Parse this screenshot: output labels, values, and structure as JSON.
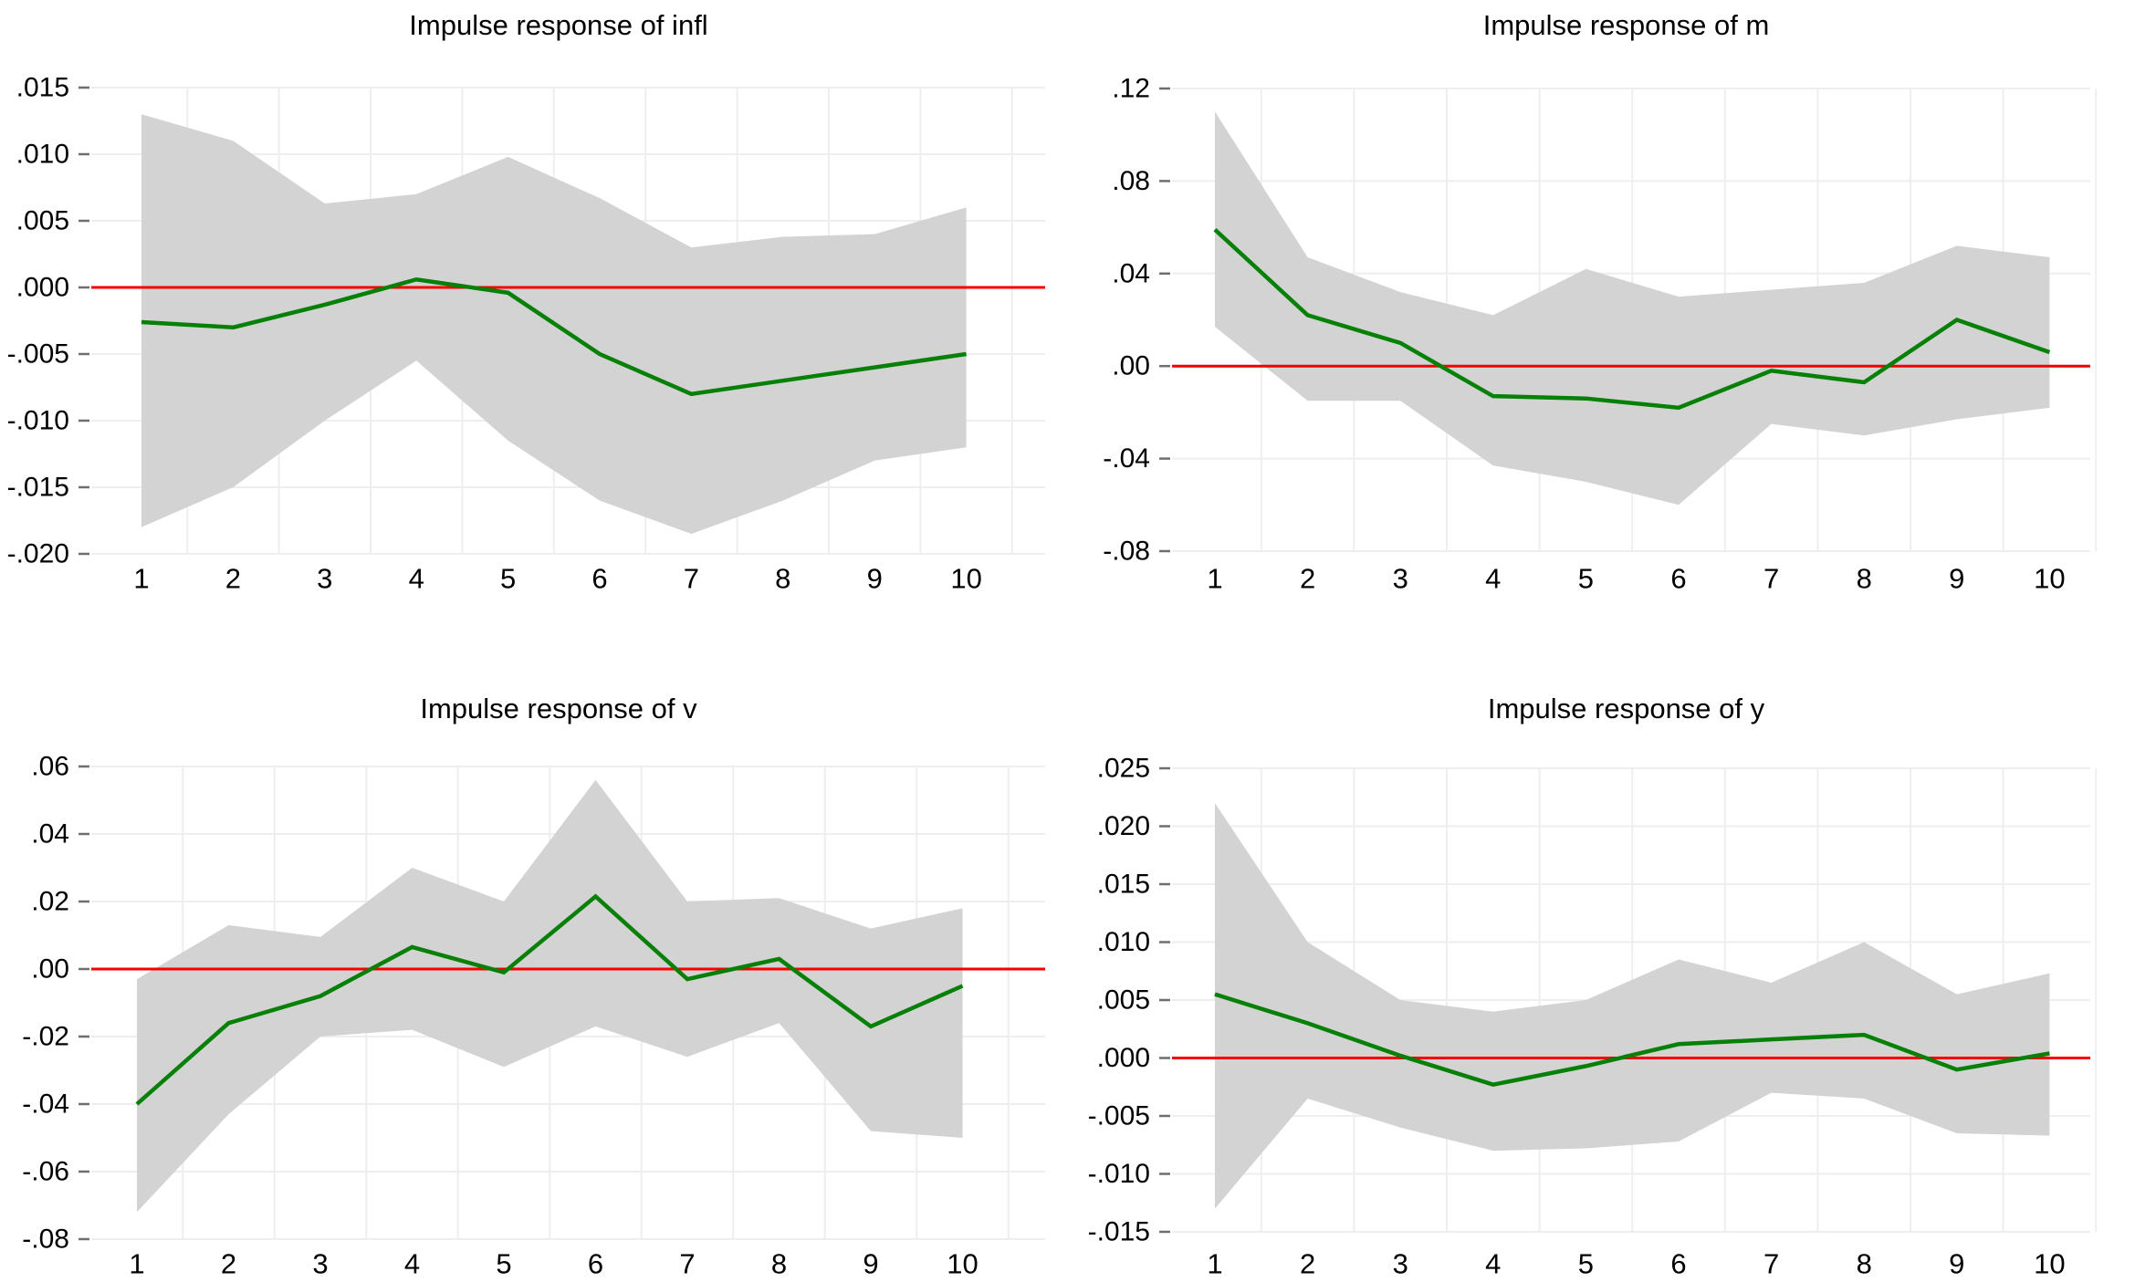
{
  "page": {
    "background": "#ffffff",
    "description_colors": {
      "band_fill": "#d3d3d3",
      "line_green": "#068006",
      "zero_line_red": "#f40000",
      "gridline": "#eeeeee",
      "tick_mark": "#6e6e6e",
      "text": "#000000"
    }
  },
  "chart_data": [
    {
      "type": "line",
      "title": "Impulse response of infl",
      "x": [
        1,
        2,
        3,
        4,
        5,
        6,
        7,
        8,
        9,
        10
      ],
      "xtick_labels": [
        "1",
        "2",
        "3",
        "4",
        "5",
        "6",
        "7",
        "8",
        "9",
        "10"
      ],
      "yticks": [
        {
          "label": ".015",
          "value": 0.015
        },
        {
          "label": ".010",
          "value": 0.01
        },
        {
          "label": ".005",
          "value": 0.005
        },
        {
          "label": ".000",
          "value": 0.0
        },
        {
          "label": "-.005",
          "value": -0.005
        },
        {
          "label": "-.010",
          "value": -0.01
        },
        {
          "label": "-.015",
          "value": -0.015
        },
        {
          "label": "-.020",
          "value": -0.02
        }
      ],
      "ylim": [
        -0.02,
        0.015
      ],
      "grid": "on",
      "legend": "none",
      "zero_line": {
        "value": 0,
        "color": "#f40000"
      },
      "band": {
        "name": "confidence-band",
        "color": "#d3d3d3",
        "upper": [
          0.013,
          0.011,
          0.0063,
          0.007,
          0.0098,
          0.0067,
          0.003,
          0.0038,
          0.004,
          0.006
        ],
        "lower": [
          -0.018,
          -0.015,
          -0.01,
          -0.0055,
          -0.0115,
          -0.016,
          -0.0185,
          -0.016,
          -0.013,
          -0.012
        ]
      },
      "series": [
        {
          "name": "impulse-response",
          "color": "#068006",
          "values": [
            -0.0026,
            -0.003,
            -0.0013,
            0.0006,
            -0.0004,
            -0.005,
            -0.008,
            -0.007,
            -0.006,
            -0.005
          ]
        }
      ]
    },
    {
      "type": "line",
      "title": "Impulse response of m",
      "x": [
        1,
        2,
        3,
        4,
        5,
        6,
        7,
        8,
        9,
        10
      ],
      "xtick_labels": [
        "1",
        "2",
        "3",
        "4",
        "5",
        "6",
        "7",
        "8",
        "9",
        "10"
      ],
      "yticks": [
        {
          "label": ".12",
          "value": 0.12
        },
        {
          "label": ".08",
          "value": 0.08
        },
        {
          "label": ".04",
          "value": 0.04
        },
        {
          "label": ".00",
          "value": 0.0
        },
        {
          "label": "-.04",
          "value": -0.04
        },
        {
          "label": "-.08",
          "value": -0.08
        }
      ],
      "ylim": [
        -0.08,
        0.12
      ],
      "grid": "on",
      "legend": "none",
      "zero_line": {
        "value": 0,
        "color": "#f40000"
      },
      "band": {
        "name": "confidence-band",
        "color": "#d3d3d3",
        "upper": [
          0.11,
          0.047,
          0.032,
          0.022,
          0.042,
          0.03,
          0.033,
          0.036,
          0.052,
          0.047
        ],
        "lower": [
          0.017,
          -0.015,
          -0.015,
          -0.043,
          -0.05,
          -0.06,
          -0.025,
          -0.03,
          -0.023,
          -0.018
        ]
      },
      "series": [
        {
          "name": "impulse-response",
          "color": "#068006",
          "values": [
            0.059,
            0.022,
            0.01,
            -0.013,
            -0.014,
            -0.018,
            -0.002,
            -0.007,
            0.02,
            0.006
          ]
        }
      ]
    },
    {
      "type": "line",
      "title": "Impulse response of v",
      "x": [
        1,
        2,
        3,
        4,
        5,
        6,
        7,
        8,
        9,
        10
      ],
      "xtick_labels": [
        "1",
        "2",
        "3",
        "4",
        "5",
        "6",
        "7",
        "8",
        "9",
        "10"
      ],
      "yticks": [
        {
          "label": ".06",
          "value": 0.06
        },
        {
          "label": ".04",
          "value": 0.04
        },
        {
          "label": ".02",
          "value": 0.02
        },
        {
          "label": ".00",
          "value": 0.0
        },
        {
          "label": "-.02",
          "value": -0.02
        },
        {
          "label": "-.04",
          "value": -0.04
        },
        {
          "label": "-.06",
          "value": -0.06
        },
        {
          "label": "-.08",
          "value": -0.08
        }
      ],
      "ylim": [
        -0.08,
        0.06
      ],
      "grid": "on",
      "legend": "none",
      "zero_line": {
        "value": 0,
        "color": "#f40000"
      },
      "band": {
        "name": "confidence-band",
        "color": "#d3d3d3",
        "upper": [
          -0.003,
          0.013,
          0.0095,
          0.03,
          0.02,
          0.056,
          0.02,
          0.021,
          0.012,
          0.018
        ],
        "lower": [
          -0.072,
          -0.043,
          -0.02,
          -0.018,
          -0.029,
          -0.017,
          -0.026,
          -0.016,
          -0.048,
          -0.05
        ]
      },
      "series": [
        {
          "name": "impulse-response",
          "color": "#068006",
          "values": [
            -0.04,
            -0.016,
            -0.008,
            0.0065,
            -0.001,
            0.0215,
            -0.003,
            0.003,
            -0.017,
            -0.005
          ]
        }
      ]
    },
    {
      "type": "line",
      "title": "Impulse response of y",
      "x": [
        1,
        2,
        3,
        4,
        5,
        6,
        7,
        8,
        9,
        10
      ],
      "xtick_labels": [
        "1",
        "2",
        "3",
        "4",
        "5",
        "6",
        "7",
        "8",
        "9",
        "10"
      ],
      "yticks": [
        {
          "label": ".025",
          "value": 0.025
        },
        {
          "label": ".020",
          "value": 0.02
        },
        {
          "label": ".015",
          "value": 0.015
        },
        {
          "label": ".010",
          "value": 0.01
        },
        {
          "label": ".005",
          "value": 0.005
        },
        {
          "label": ".000",
          "value": 0.0
        },
        {
          "label": "-.005",
          "value": -0.005
        },
        {
          "label": "-.010",
          "value": -0.01
        },
        {
          "label": "-.015",
          "value": -0.015
        }
      ],
      "ylim": [
        -0.015,
        0.025
      ],
      "grid": "on",
      "legend": "none",
      "zero_line": {
        "value": 0,
        "color": "#f40000"
      },
      "band": {
        "name": "confidence-band",
        "color": "#d3d3d3",
        "upper": [
          0.022,
          0.01,
          0.005,
          0.004,
          0.005,
          0.0085,
          0.0065,
          0.01,
          0.0055,
          0.0073
        ],
        "lower": [
          -0.013,
          -0.0035,
          -0.006,
          -0.008,
          -0.0078,
          -0.0072,
          -0.003,
          -0.0035,
          -0.0065,
          -0.0067
        ]
      },
      "series": [
        {
          "name": "impulse-response",
          "color": "#068006",
          "values": [
            0.0055,
            0.003,
            0.0002,
            -0.0023,
            -0.0007,
            0.0012,
            0.0016,
            0.002,
            -0.001,
            0.0004
          ]
        }
      ]
    }
  ]
}
